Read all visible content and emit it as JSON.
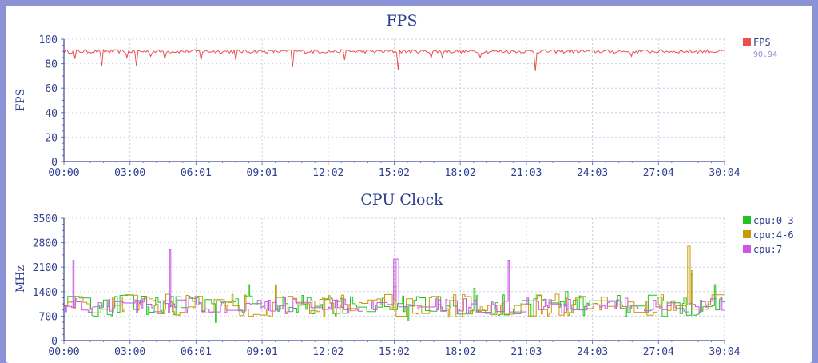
{
  "chart_data": [
    {
      "type": "line",
      "title": "FPS",
      "ylabel": "FPS",
      "xlabel": "",
      "ylim": [
        0,
        100
      ],
      "yticks": [
        0,
        20,
        40,
        60,
        80,
        100
      ],
      "x_ticks": [
        "00:00",
        "03:00",
        "06:01",
        "09:01",
        "12:02",
        "15:02",
        "18:02",
        "21:03",
        "24:03",
        "27:04",
        "30:04"
      ],
      "grid": true,
      "legend_position": "right",
      "series": [
        {
          "name": "FPS",
          "color": "#e8504f",
          "legend_value": "90.94",
          "baseline": 90,
          "noise": 1.5,
          "dips": [
            [
              0.016,
              84
            ],
            [
              0.057,
              78
            ],
            [
              0.095,
              85
            ],
            [
              0.11,
              78
            ],
            [
              0.131,
              86
            ],
            [
              0.152,
              84
            ],
            [
              0.207,
              83
            ],
            [
              0.26,
              83
            ],
            [
              0.347,
              77
            ],
            [
              0.425,
              83
            ],
            [
              0.5,
              83
            ],
            [
              0.506,
              75
            ],
            [
              0.555,
              85
            ],
            [
              0.572,
              85
            ],
            [
              0.631,
              85
            ],
            [
              0.713,
              74
            ],
            [
              0.86,
              86
            ]
          ]
        }
      ]
    },
    {
      "type": "line",
      "title": "CPU Clock",
      "ylabel": "MHz",
      "xlabel": "",
      "ylim": [
        0,
        3500
      ],
      "yticks": [
        0,
        700,
        1400,
        2100,
        2800,
        3500
      ],
      "x_ticks": [
        "00:00",
        "03:00",
        "06:01",
        "09:01",
        "12:02",
        "15:02",
        "18:02",
        "21:03",
        "24:03",
        "27:04",
        "30:04"
      ],
      "grid": true,
      "legend_position": "right",
      "series": [
        {
          "name": "cpu:0-3",
          "color": "#21c421",
          "baseline": 1000,
          "noise": 320,
          "spikes": [
            [
              0.23,
              520
            ],
            [
              0.28,
              1600
            ],
            [
              0.32,
              1550
            ],
            [
              0.52,
              560
            ],
            [
              0.62,
              1500
            ],
            [
              0.76,
              1400
            ],
            [
              0.95,
              1900
            ],
            [
              0.985,
              1600
            ]
          ]
        },
        {
          "name": "cpu:4-6",
          "color": "#c99a07",
          "baseline": 1000,
          "noise": 330,
          "spikes": [
            [
              0.32,
              1600
            ],
            [
              0.5,
              1550
            ],
            [
              0.945,
              2700
            ],
            [
              0.95,
              2000
            ]
          ]
        },
        {
          "name": "cpu:7",
          "color": "#cc55e8",
          "baseline": 1000,
          "noise": 220,
          "spikes": [
            [
              0.013,
              2300
            ],
            [
              0.16,
              2600
            ],
            [
              0.499,
              2330
            ],
            [
              0.504,
              2330
            ],
            [
              0.672,
              2300
            ]
          ]
        }
      ]
    }
  ]
}
